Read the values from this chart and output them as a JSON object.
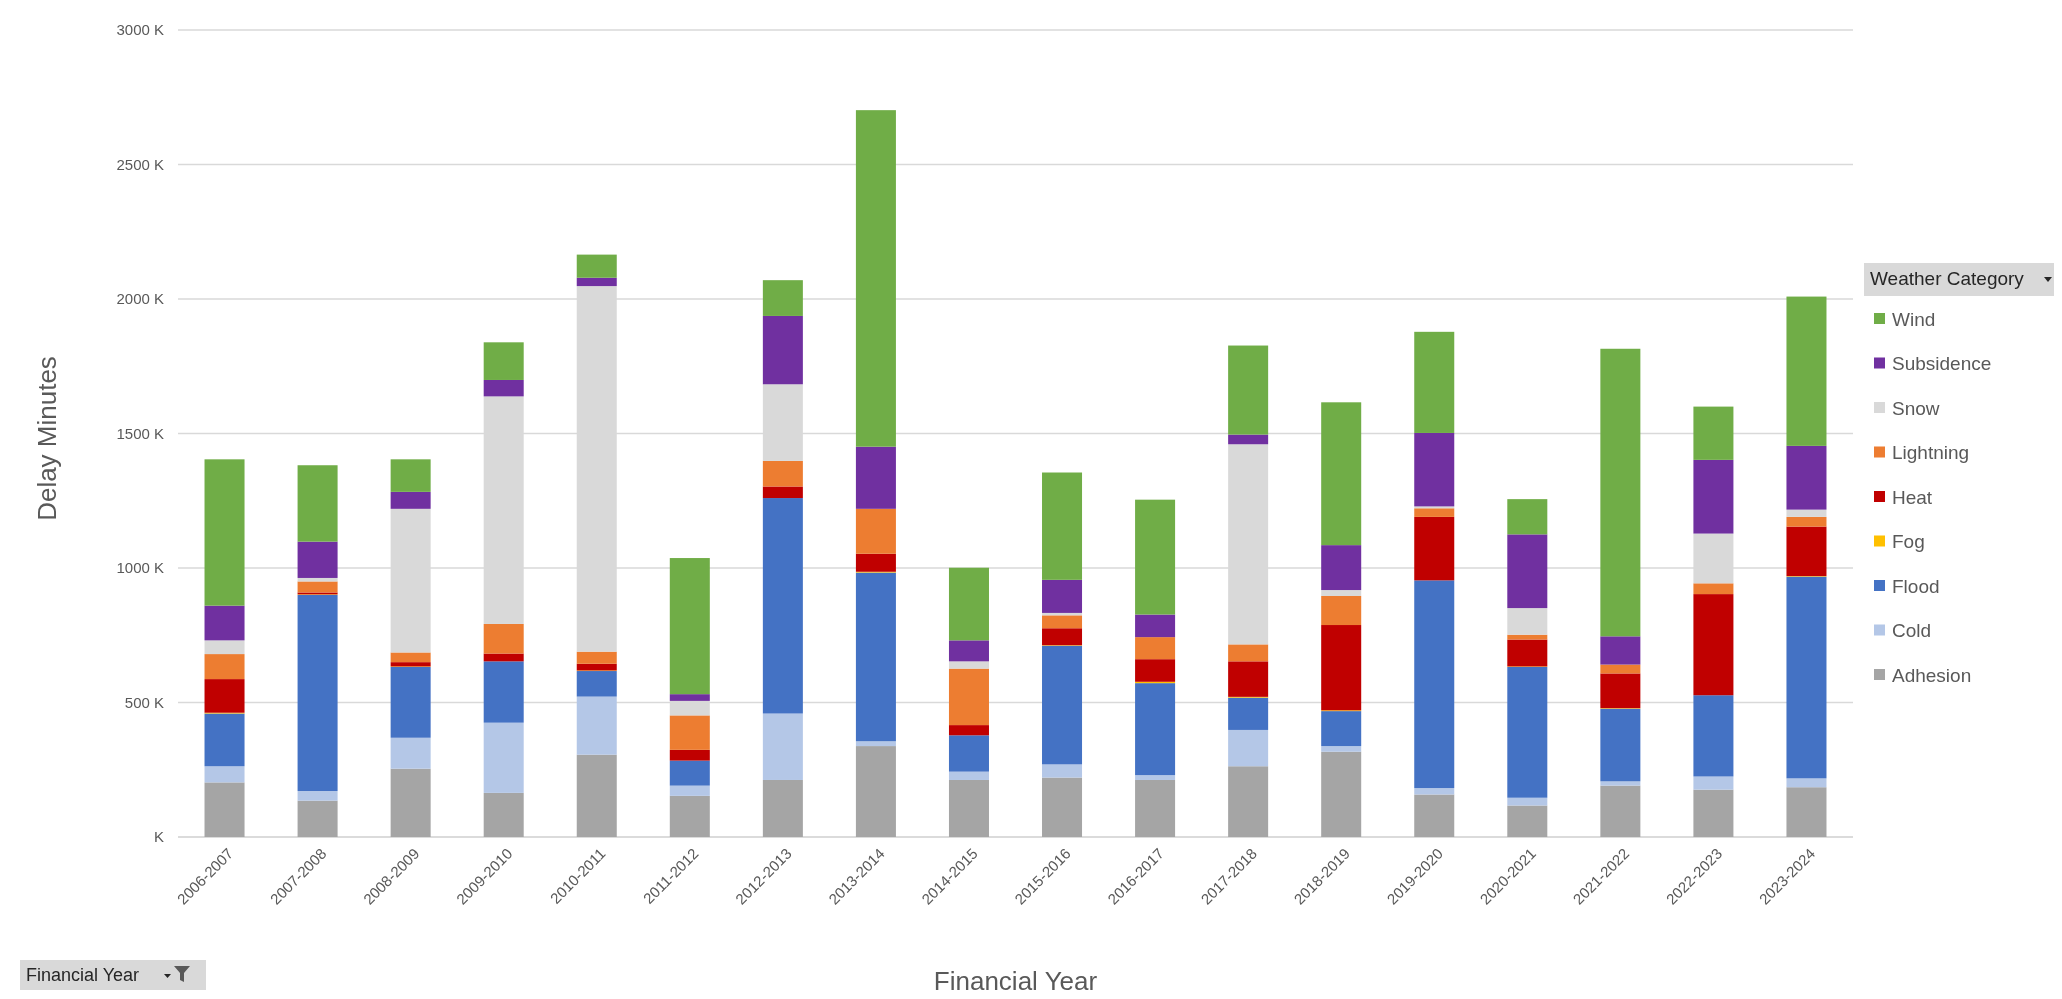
{
  "chart_data": {
    "type": "bar",
    "stacked": true,
    "xlabel": "Financial Year",
    "ylabel": "Delay Minutes",
    "legend_title": "Weather Category",
    "legend": "right",
    "grid": "y",
    "annotations": [
      "Financial Year"
    ],
    "categories": [
      "2006-2007",
      "2007-2008",
      "2008-2009",
      "2009-2010",
      "2010-2011",
      "2011-2012",
      "2012-2013",
      "2013-2014",
      "2014-2015",
      "2015-2016",
      "2016-2017",
      "2017-2018",
      "2018-2019",
      "2019-2020",
      "2020-2021",
      "2021-2022",
      "2022-2023",
      "2023-2024"
    ],
    "ylim": [
      0,
      3000
    ],
    "yticks": [
      {
        "value": 0,
        "label": "K"
      },
      {
        "value": 500,
        "label": "500 K"
      },
      {
        "value": 1000,
        "label": "1000 K"
      },
      {
        "value": 1500,
        "label": "1500 K"
      },
      {
        "value": 2000,
        "label": "2000 K"
      },
      {
        "value": 2500,
        "label": "2500 K"
      },
      {
        "value": 3000,
        "label": "3000 K"
      }
    ],
    "series": [
      {
        "name": "Adhesion",
        "color": "#a5a5a5",
        "values": [
          203,
          135,
          254,
          164,
          306,
          153,
          212,
          338,
          212,
          221,
          212,
          263,
          317,
          158,
          117,
          191,
          176,
          185
        ]
      },
      {
        "name": "Cold",
        "color": "#b4c7e7",
        "values": [
          60,
          36,
          115,
          261,
          216,
          38,
          247,
          18,
          31,
          49,
          18,
          135,
          21,
          24,
          29,
          16,
          49,
          33
        ]
      },
      {
        "name": "Flood",
        "color": "#4472c4",
        "values": [
          196,
          729,
          263,
          228,
          95,
          93,
          801,
          627,
          135,
          441,
          342,
          120,
          130,
          772,
          486,
          270,
          302,
          750
        ]
      },
      {
        "name": "Fog",
        "color": "#ffc000",
        "values": [
          3,
          2,
          2,
          0,
          2,
          0,
          0,
          3,
          0,
          2,
          5,
          3,
          3,
          0,
          2,
          2,
          0,
          2
        ]
      },
      {
        "name": "Heat",
        "color": "#c00000",
        "values": [
          125,
          7,
          16,
          29,
          25,
          40,
          43,
          67,
          38,
          63,
          84,
          132,
          317,
          236,
          100,
          129,
          376,
          184
        ]
      },
      {
        "name": "Lightning",
        "color": "#ed7d31",
        "values": [
          93,
          41,
          36,
          110,
          45,
          128,
          95,
          167,
          210,
          48,
          82,
          63,
          108,
          32,
          18,
          33,
          40,
          36
        ]
      },
      {
        "name": "Snow",
        "color": "#d9d9d9",
        "values": [
          51,
          13,
          534,
          846,
          1359,
          54,
          285,
          0,
          27,
          9,
          0,
          744,
          22,
          7,
          99,
          0,
          185,
          27
        ]
      },
      {
        "name": "Subsidence",
        "color": "#7030a0",
        "values": [
          129,
          135,
          63,
          61,
          31,
          25,
          254,
          231,
          78,
          123,
          84,
          36,
          167,
          273,
          274,
          105,
          274,
          237
        ]
      },
      {
        "name": "Wind",
        "color": "#70ad47",
        "values": [
          544,
          284,
          121,
          140,
          86,
          506,
          133,
          1251,
          270,
          399,
          427,
          331,
          531,
          376,
          131,
          1069,
          198,
          555
        ]
      }
    ]
  }
}
